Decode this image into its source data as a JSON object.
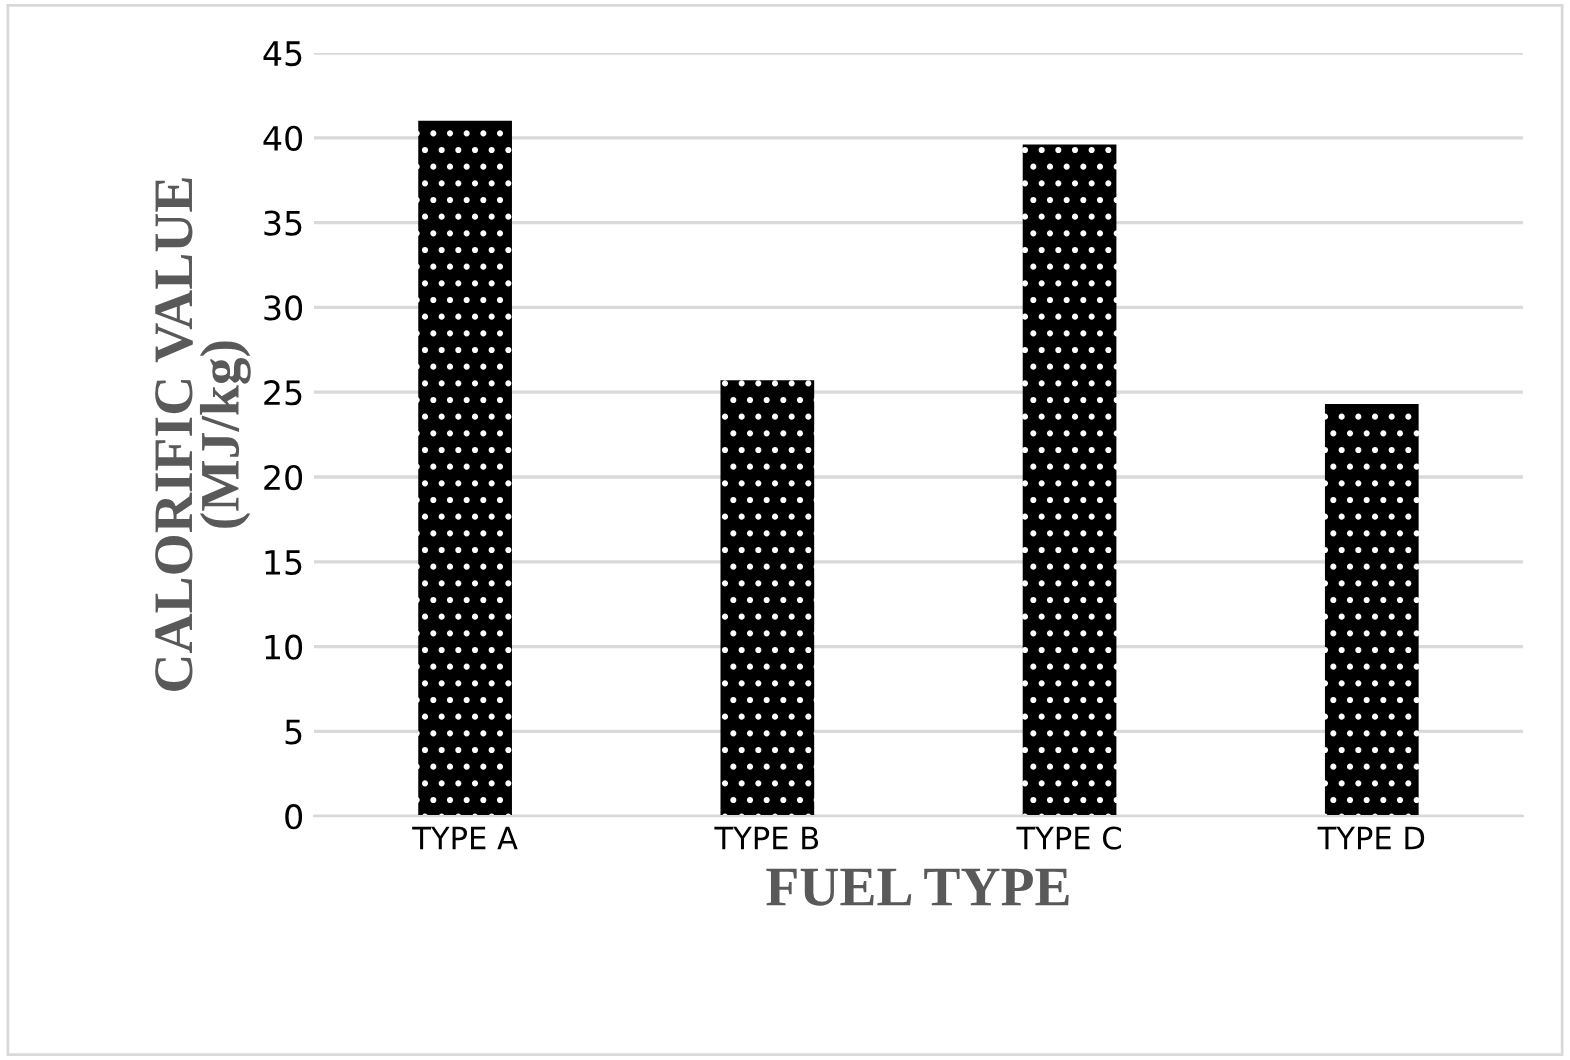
{
  "chart_data": {
    "type": "bar",
    "xlabel": "FUEL TYPE",
    "ylabel": "CALORIFIC VALUE\n(MJ/kg)",
    "categories": [
      "TYPE A",
      "TYPE B",
      "TYPE C",
      "TYPE D"
    ],
    "values": [
      41.0,
      25.7,
      39.6,
      24.3
    ],
    "color": "#000000",
    "ylim": [
      0,
      45
    ],
    "yticks": [
      0,
      5,
      10,
      15,
      20,
      25,
      30,
      35,
      40,
      45
    ],
    "grid": "y",
    "legend": false
  }
}
